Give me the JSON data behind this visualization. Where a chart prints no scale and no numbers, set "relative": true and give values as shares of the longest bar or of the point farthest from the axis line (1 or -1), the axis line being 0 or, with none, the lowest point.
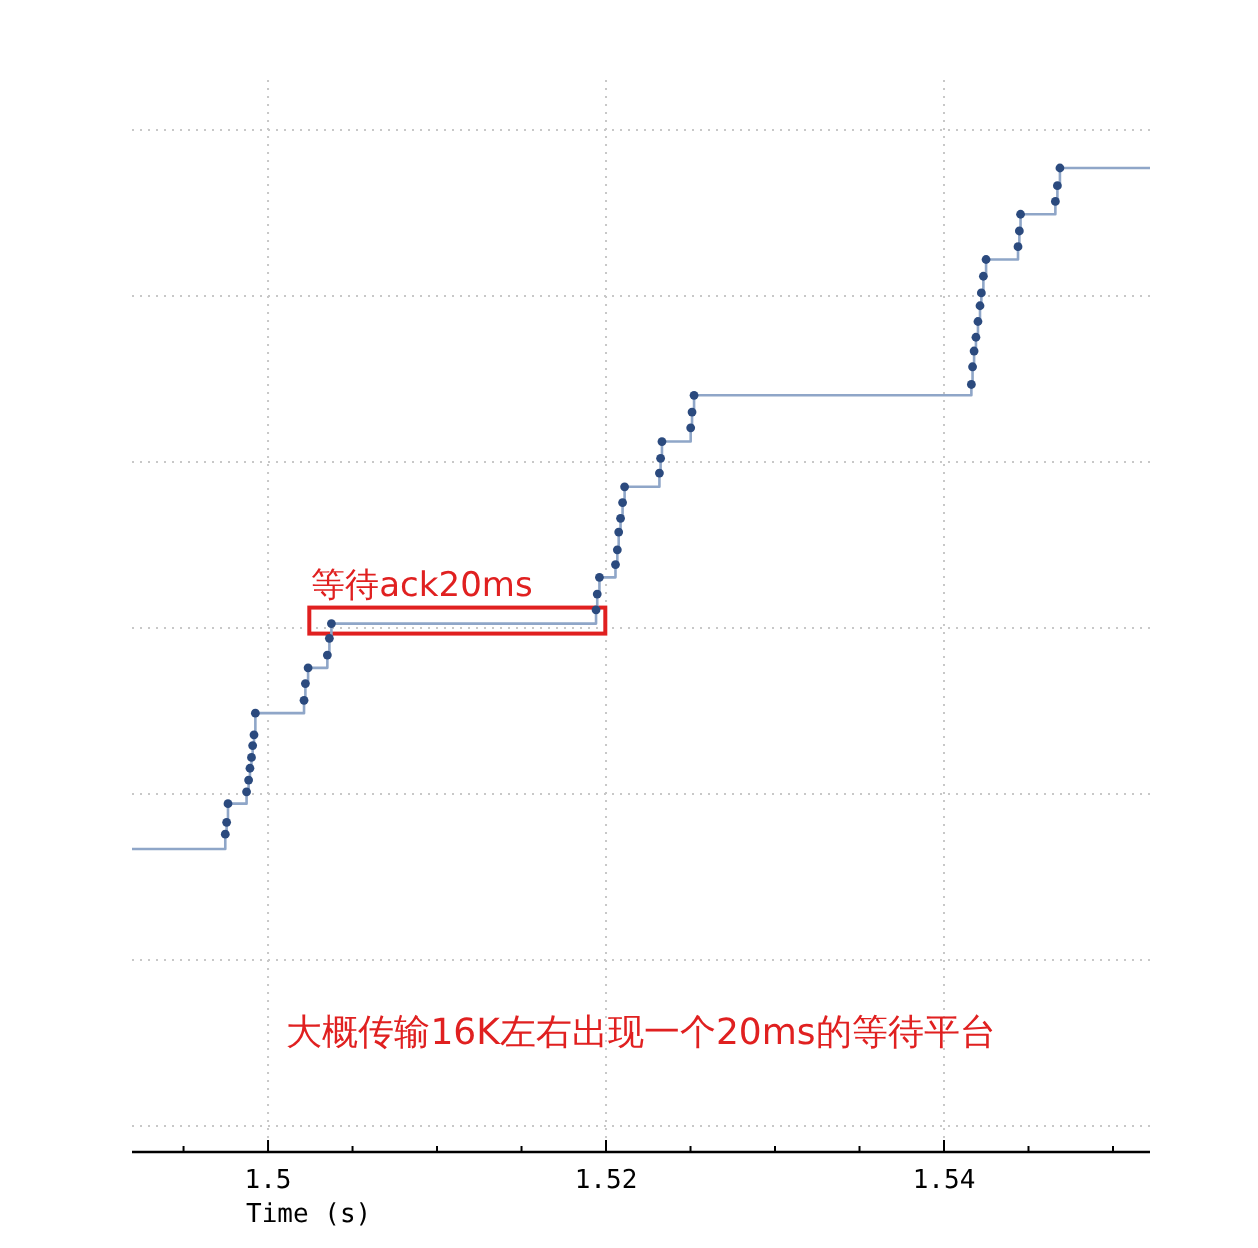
{
  "chart_data": {
    "type": "step",
    "relative": true,
    "xlabel": "Time (s)",
    "xlim": [
      1.49195,
      1.55219
    ],
    "xticks": [
      {
        "value": 1.495,
        "label": null
      },
      1.5,
      {
        "value": 1.505,
        "label": null
      },
      {
        "value": 1.51,
        "label": null
      },
      {
        "value": 1.515,
        "label": null
      },
      1.52,
      {
        "value": 1.525,
        "label": null
      },
      {
        "value": 1.53,
        "label": null
      },
      {
        "value": 1.535,
        "label": null
      },
      1.54,
      {
        "value": 1.545,
        "label": null
      },
      {
        "value": 1.55,
        "label": null
      }
    ],
    "grid": true,
    "line_style": "solid",
    "series": [
      {
        "color": "#8fa6c8",
        "marker": "none",
        "x": [
          1.49195,
          1.49747,
          1.49755,
          1.49763,
          1.49873,
          1.49885,
          1.49893,
          1.49902,
          1.49909,
          1.49917,
          1.49925,
          1.50213,
          1.50221,
          1.50237,
          1.50351,
          1.50363,
          1.50375,
          1.51941,
          1.51948,
          1.51961,
          1.52056,
          1.52067,
          1.52075,
          1.52086,
          1.52098,
          1.5211,
          1.52316,
          1.52323,
          1.52331,
          1.52501,
          1.52509,
          1.52521,
          1.54162,
          1.54169,
          1.54178,
          1.54189,
          1.54201,
          1.54213,
          1.54221,
          1.54233,
          1.54249,
          1.54438,
          1.54446,
          1.54453,
          1.54659,
          1.54671,
          1.54686,
          1.55219
        ],
        "values": [
          0.308,
          0.323,
          0.335,
          0.354,
          0.366,
          0.378,
          0.39,
          0.401,
          0.413,
          0.424,
          0.446,
          0.459,
          0.476,
          0.492,
          0.505,
          0.522,
          0.537,
          0.551,
          0.567,
          0.584,
          0.597,
          0.612,
          0.63,
          0.644,
          0.66,
          0.676,
          0.69,
          0.705,
          0.722,
          0.736,
          0.752,
          0.769,
          0.78,
          0.798,
          0.814,
          0.828,
          0.844,
          0.86,
          0.873,
          0.89,
          0.907,
          0.92,
          0.936,
          0.953,
          0.966,
          0.982,
          1,
          1
        ]
      },
      {
        "type": "scatter",
        "color": "#2b4a7e",
        "marker": "circle",
        "x": [
          1.49747,
          1.49755,
          1.49763,
          1.49873,
          1.49885,
          1.49893,
          1.49902,
          1.49909,
          1.49917,
          1.49925,
          1.50213,
          1.50221,
          1.50237,
          1.50351,
          1.50363,
          1.50375,
          1.51941,
          1.51948,
          1.51961,
          1.52056,
          1.52067,
          1.52075,
          1.52086,
          1.52098,
          1.5211,
          1.52316,
          1.52323,
          1.52331,
          1.52501,
          1.52509,
          1.52521,
          1.54162,
          1.54169,
          1.54178,
          1.54189,
          1.54201,
          1.54213,
          1.54221,
          1.54233,
          1.54249,
          1.54438,
          1.54446,
          1.54453,
          1.54659,
          1.54671,
          1.54686
        ],
        "values": [
          0.323,
          0.335,
          0.354,
          0.366,
          0.378,
          0.39,
          0.401,
          0.413,
          0.424,
          0.446,
          0.459,
          0.476,
          0.492,
          0.505,
          0.522,
          0.537,
          0.551,
          0.567,
          0.584,
          0.597,
          0.612,
          0.63,
          0.644,
          0.66,
          0.676,
          0.69,
          0.705,
          0.722,
          0.736,
          0.752,
          0.769,
          0.78,
          0.798,
          0.814,
          0.828,
          0.844,
          0.86,
          0.873,
          0.89,
          0.907,
          0.92,
          0.936,
          0.953,
          0.966,
          0.982,
          1
        ]
      }
    ],
    "annotations": [
      {
        "text": "等待ack20ms",
        "x": 1.5112,
        "y": 0.537
      },
      "大概传输16K左右出现一个20ms的等待平台"
    ]
  }
}
